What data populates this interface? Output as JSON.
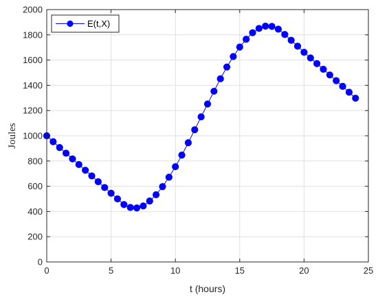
{
  "chart_data": {
    "type": "line",
    "xlabel": "t (hours)",
    "ylabel": "Joules",
    "xlim": [
      0,
      25
    ],
    "ylim": [
      0,
      2000
    ],
    "xticks": [
      0,
      5,
      10,
      15,
      20,
      25
    ],
    "yticks": [
      0,
      200,
      400,
      600,
      800,
      1000,
      1200,
      1400,
      1600,
      1800,
      2000
    ],
    "grid": true,
    "legend_position": "top-left",
    "series": [
      {
        "name": "E(t,X)",
        "color": "#0000ff",
        "marker": "circle",
        "x": [
          0,
          0.5,
          1,
          1.5,
          2,
          2.5,
          3,
          3.5,
          4,
          4.5,
          5,
          5.5,
          6,
          6.5,
          7,
          7.5,
          8,
          8.5,
          9,
          9.5,
          10,
          10.5,
          11,
          11.5,
          12,
          12.5,
          13,
          13.5,
          14,
          14.5,
          15,
          15.5,
          16,
          16.5,
          17,
          17.5,
          18,
          18.5,
          19,
          19.5,
          20,
          20.5,
          21,
          21.5,
          22,
          22.5,
          23,
          23.5,
          24
        ],
        "y": [
          1000,
          953,
          907,
          862,
          817,
          772,
          727,
          682,
          636,
          590,
          545,
          500,
          455,
          432,
          428,
          444,
          483,
          533,
          597,
          672,
          755,
          847,
          945,
          1048,
          1150,
          1252,
          1353,
          1452,
          1545,
          1628,
          1703,
          1765,
          1817,
          1851,
          1869,
          1867,
          1845,
          1803,
          1757,
          1710,
          1662,
          1617,
          1572,
          1527,
          1482,
          1437,
          1392,
          1345,
          1298
        ]
      }
    ]
  }
}
